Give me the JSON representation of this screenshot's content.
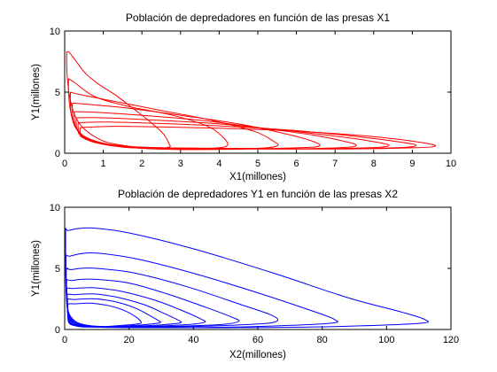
{
  "chart_data": [
    {
      "type": "line",
      "title": "Población de depredadores en función de las presas X1",
      "xlabel": "X1(millones)",
      "ylabel": "Y1(millones)",
      "xlim": [
        0,
        10
      ],
      "ylim": [
        0,
        10
      ],
      "xticks": [
        "0",
        "1",
        "2",
        "3",
        "4",
        "5",
        "6",
        "7",
        "8",
        "9",
        "10"
      ],
      "yticks": [
        "0",
        "5",
        "10"
      ],
      "grid": false,
      "color": "#ff0000",
      "series": [
        {
          "points": [
            [
              0.05,
              8.3
            ],
            [
              0.12,
              8.25
            ],
            [
              0.3,
              7.5
            ],
            [
              0.55,
              6.5
            ],
            [
              0.9,
              5.6
            ],
            [
              1.3,
              4.8
            ],
            [
              1.8,
              3.6
            ],
            [
              2.2,
              2.6
            ],
            [
              2.55,
              1.6
            ],
            [
              2.7,
              0.8
            ],
            [
              2.7,
              0.5
            ],
            [
              2.3,
              0.4
            ],
            [
              1.6,
              0.6
            ],
            [
              1.0,
              1.0
            ],
            [
              0.5,
              2.0
            ],
            [
              0.25,
              3.2
            ],
            [
              0.12,
              4.8
            ],
            [
              0.06,
              6.6
            ],
            [
              0.05,
              8.3
            ]
          ]
        },
        {
          "points": [
            [
              0.1,
              6.1
            ],
            [
              0.25,
              5.8
            ],
            [
              0.8,
              4.6
            ],
            [
              1.7,
              3.8
            ],
            [
              2.8,
              3.1
            ],
            [
              3.7,
              2.2
            ],
            [
              4.1,
              1.3
            ],
            [
              4.2,
              0.6
            ],
            [
              3.7,
              0.4
            ],
            [
              2.5,
              0.4
            ],
            [
              1.5,
              0.5
            ],
            [
              0.7,
              1.0
            ],
            [
              0.3,
              2.0
            ],
            [
              0.15,
              3.5
            ],
            [
              0.1,
              5.0
            ],
            [
              0.1,
              6.1
            ]
          ]
        },
        {
          "points": [
            [
              0.15,
              5.0
            ],
            [
              0.4,
              4.8
            ],
            [
              1.2,
              4.3
            ],
            [
              2.5,
              3.5
            ],
            [
              3.8,
              2.7
            ],
            [
              4.9,
              1.8
            ],
            [
              5.4,
              1.0
            ],
            [
              5.5,
              0.6
            ],
            [
              5.0,
              0.4
            ],
            [
              3.5,
              0.3
            ],
            [
              2.0,
              0.4
            ],
            [
              0.9,
              0.8
            ],
            [
              0.4,
              1.6
            ],
            [
              0.2,
              2.8
            ],
            [
              0.15,
              4.0
            ],
            [
              0.15,
              5.0
            ]
          ]
        },
        {
          "points": [
            [
              0.2,
              4.1
            ],
            [
              0.6,
              4.0
            ],
            [
              1.6,
              3.7
            ],
            [
              3.0,
              3.1
            ],
            [
              4.5,
              2.4
            ],
            [
              5.7,
              1.6
            ],
            [
              6.4,
              1.0
            ],
            [
              6.6,
              0.6
            ],
            [
              6.1,
              0.45
            ],
            [
              4.5,
              0.35
            ],
            [
              2.6,
              0.4
            ],
            [
              1.2,
              0.7
            ],
            [
              0.5,
              1.4
            ],
            [
              0.25,
              2.4
            ],
            [
              0.2,
              3.3
            ],
            [
              0.2,
              4.1
            ]
          ]
        },
        {
          "points": [
            [
              0.25,
              3.4
            ],
            [
              0.8,
              3.35
            ],
            [
              2.0,
              3.1
            ],
            [
              3.5,
              2.7
            ],
            [
              5.0,
              2.1
            ],
            [
              6.4,
              1.5
            ],
            [
              7.2,
              1.0
            ],
            [
              7.55,
              0.65
            ],
            [
              7.1,
              0.45
            ],
            [
              5.2,
              0.35
            ],
            [
              3.0,
              0.4
            ],
            [
              1.4,
              0.6
            ],
            [
              0.6,
              1.2
            ],
            [
              0.3,
              2.1
            ],
            [
              0.25,
              2.8
            ],
            [
              0.25,
              3.4
            ]
          ]
        },
        {
          "points": [
            [
              0.3,
              2.9
            ],
            [
              1.0,
              2.9
            ],
            [
              2.4,
              2.7
            ],
            [
              4.0,
              2.4
            ],
            [
              5.6,
              1.9
            ],
            [
              7.0,
              1.4
            ],
            [
              7.9,
              1.0
            ],
            [
              8.4,
              0.65
            ],
            [
              7.9,
              0.45
            ],
            [
              6.0,
              0.35
            ],
            [
              3.5,
              0.4
            ],
            [
              1.6,
              0.55
            ],
            [
              0.7,
              1.0
            ],
            [
              0.35,
              1.8
            ],
            [
              0.3,
              2.4
            ],
            [
              0.3,
              2.9
            ]
          ]
        },
        {
          "points": [
            [
              0.35,
              2.5
            ],
            [
              1.2,
              2.55
            ],
            [
              2.8,
              2.4
            ],
            [
              4.5,
              2.15
            ],
            [
              6.2,
              1.8
            ],
            [
              7.6,
              1.35
            ],
            [
              8.6,
              0.95
            ],
            [
              9.1,
              0.65
            ],
            [
              8.6,
              0.45
            ],
            [
              6.6,
              0.35
            ],
            [
              4.0,
              0.4
            ],
            [
              1.8,
              0.5
            ],
            [
              0.8,
              0.9
            ],
            [
              0.4,
              1.5
            ],
            [
              0.35,
              2.0
            ],
            [
              0.35,
              2.5
            ]
          ]
        },
        {
          "points": [
            [
              0.4,
              2.1
            ],
            [
              1.4,
              2.2
            ],
            [
              3.2,
              2.1
            ],
            [
              5.0,
              1.95
            ],
            [
              6.8,
              1.65
            ],
            [
              8.2,
              1.3
            ],
            [
              9.2,
              0.9
            ],
            [
              9.6,
              0.6
            ],
            [
              9.1,
              0.45
            ],
            [
              7.2,
              0.35
            ],
            [
              4.5,
              0.4
            ],
            [
              2.0,
              0.45
            ],
            [
              0.9,
              0.8
            ],
            [
              0.45,
              1.3
            ],
            [
              0.4,
              1.7
            ],
            [
              0.4,
              2.1
            ]
          ]
        }
      ]
    },
    {
      "type": "line",
      "title": "Población de depredadores Y1 en función de las presas X2",
      "xlabel": "X2(millones)",
      "ylabel": "Y1(millones)",
      "xlim": [
        0,
        120
      ],
      "ylim": [
        0,
        10
      ],
      "xticks": [
        "0",
        "20",
        "40",
        "60",
        "80",
        "100",
        "120"
      ],
      "yticks": [
        "0",
        "5",
        "10"
      ],
      "grid": false,
      "color": "#0000ff",
      "series": [
        {
          "points": [
            [
              0.3,
              8.3
            ],
            [
              1.0,
              8.1
            ],
            [
              4.0,
              8.25
            ],
            [
              9.0,
              8.3
            ],
            [
              20.0,
              7.9
            ],
            [
              40.0,
              6.6
            ],
            [
              65.0,
              4.6
            ],
            [
              88.0,
              2.6
            ],
            [
              105.0,
              1.4
            ],
            [
              112.0,
              0.8
            ],
            [
              110.0,
              0.5
            ],
            [
              85.0,
              0.25
            ],
            [
              55.0,
              0.15
            ],
            [
              25.0,
              0.15
            ],
            [
              10.0,
              0.2
            ],
            [
              3.0,
              0.5
            ],
            [
              1.0,
              1.5
            ],
            [
              0.4,
              3.5
            ],
            [
              0.3,
              6.0
            ],
            [
              0.3,
              8.3
            ]
          ]
        },
        {
          "points": [
            [
              0.4,
              6.1
            ],
            [
              1.5,
              6.0
            ],
            [
              5.0,
              6.2
            ],
            [
              10.0,
              6.25
            ],
            [
              22.0,
              5.8
            ],
            [
              40.0,
              4.6
            ],
            [
              60.0,
              3.0
            ],
            [
              76.0,
              1.6
            ],
            [
              84.0,
              0.8
            ],
            [
              82.0,
              0.5
            ],
            [
              60.0,
              0.25
            ],
            [
              35.0,
              0.15
            ],
            [
              15.0,
              0.2
            ],
            [
              5.0,
              0.4
            ],
            [
              1.5,
              1.2
            ],
            [
              0.5,
              3.0
            ],
            [
              0.4,
              6.1
            ]
          ]
        },
        {
          "points": [
            [
              0.5,
              5.0
            ],
            [
              2.0,
              4.9
            ],
            [
              5.0,
              5.0
            ],
            [
              10.0,
              5.0
            ],
            [
              22.0,
              4.6
            ],
            [
              38.0,
              3.5
            ],
            [
              54.0,
              2.1
            ],
            [
              64.0,
              1.2
            ],
            [
              66.0,
              0.7
            ],
            [
              60.0,
              0.45
            ],
            [
              40.0,
              0.25
            ],
            [
              20.0,
              0.2
            ],
            [
              7.0,
              0.35
            ],
            [
              2.0,
              1.0
            ],
            [
              0.6,
              2.5
            ],
            [
              0.5,
              5.0
            ]
          ]
        },
        {
          "points": [
            [
              0.6,
              4.1
            ],
            [
              2.0,
              4.0
            ],
            [
              5.0,
              4.1
            ],
            [
              10.0,
              4.1
            ],
            [
              20.0,
              3.8
            ],
            [
              32.0,
              2.9
            ],
            [
              44.0,
              1.8
            ],
            [
              52.0,
              1.0
            ],
            [
              54.0,
              0.65
            ],
            [
              48.0,
              0.4
            ],
            [
              32.0,
              0.25
            ],
            [
              15.0,
              0.2
            ],
            [
              5.0,
              0.35
            ],
            [
              1.8,
              0.9
            ],
            [
              0.7,
              2.0
            ],
            [
              0.6,
              4.1
            ]
          ]
        },
        {
          "points": [
            [
              0.7,
              3.4
            ],
            [
              2.5,
              3.35
            ],
            [
              5.0,
              3.4
            ],
            [
              10.0,
              3.4
            ],
            [
              18.0,
              3.1
            ],
            [
              28.0,
              2.4
            ],
            [
              36.0,
              1.6
            ],
            [
              42.0,
              0.9
            ],
            [
              43.5,
              0.6
            ],
            [
              38.0,
              0.4
            ],
            [
              25.0,
              0.25
            ],
            [
              12.0,
              0.2
            ],
            [
              4.0,
              0.35
            ],
            [
              1.5,
              0.8
            ],
            [
              0.8,
              1.8
            ],
            [
              0.7,
              3.4
            ]
          ]
        },
        {
          "points": [
            [
              0.8,
              2.9
            ],
            [
              3.0,
              2.85
            ],
            [
              6.0,
              2.9
            ],
            [
              10.0,
              2.9
            ],
            [
              17.0,
              2.6
            ],
            [
              25.0,
              2.0
            ],
            [
              31.0,
              1.3
            ],
            [
              35.0,
              0.8
            ],
            [
              36.0,
              0.55
            ],
            [
              31.0,
              0.4
            ],
            [
              20.0,
              0.25
            ],
            [
              10.0,
              0.2
            ],
            [
              3.5,
              0.35
            ],
            [
              1.4,
              0.7
            ],
            [
              0.9,
              1.5
            ],
            [
              0.8,
              2.9
            ]
          ]
        },
        {
          "points": [
            [
              0.9,
              2.5
            ],
            [
              3.0,
              2.45
            ],
            [
              6.0,
              2.5
            ],
            [
              10.0,
              2.5
            ],
            [
              16.0,
              2.25
            ],
            [
              22.0,
              1.75
            ],
            [
              26.0,
              1.2
            ],
            [
              29.0,
              0.75
            ],
            [
              29.5,
              0.55
            ],
            [
              25.0,
              0.4
            ],
            [
              16.0,
              0.25
            ],
            [
              8.0,
              0.2
            ],
            [
              3.0,
              0.35
            ],
            [
              1.3,
              0.65
            ],
            [
              0.9,
              1.4
            ],
            [
              0.9,
              2.5
            ]
          ]
        },
        {
          "points": [
            [
              1.0,
              2.1
            ],
            [
              3.5,
              2.1
            ],
            [
              7.0,
              2.15
            ],
            [
              10.0,
              2.1
            ],
            [
              14.5,
              1.9
            ],
            [
              19.0,
              1.5
            ],
            [
              22.0,
              1.05
            ],
            [
              23.5,
              0.7
            ],
            [
              23.5,
              0.5
            ],
            [
              20.0,
              0.38
            ],
            [
              13.0,
              0.25
            ],
            [
              6.0,
              0.2
            ],
            [
              2.5,
              0.35
            ],
            [
              1.2,
              0.6
            ],
            [
              1.0,
              1.2
            ],
            [
              1.0,
              2.1
            ]
          ]
        }
      ]
    }
  ]
}
